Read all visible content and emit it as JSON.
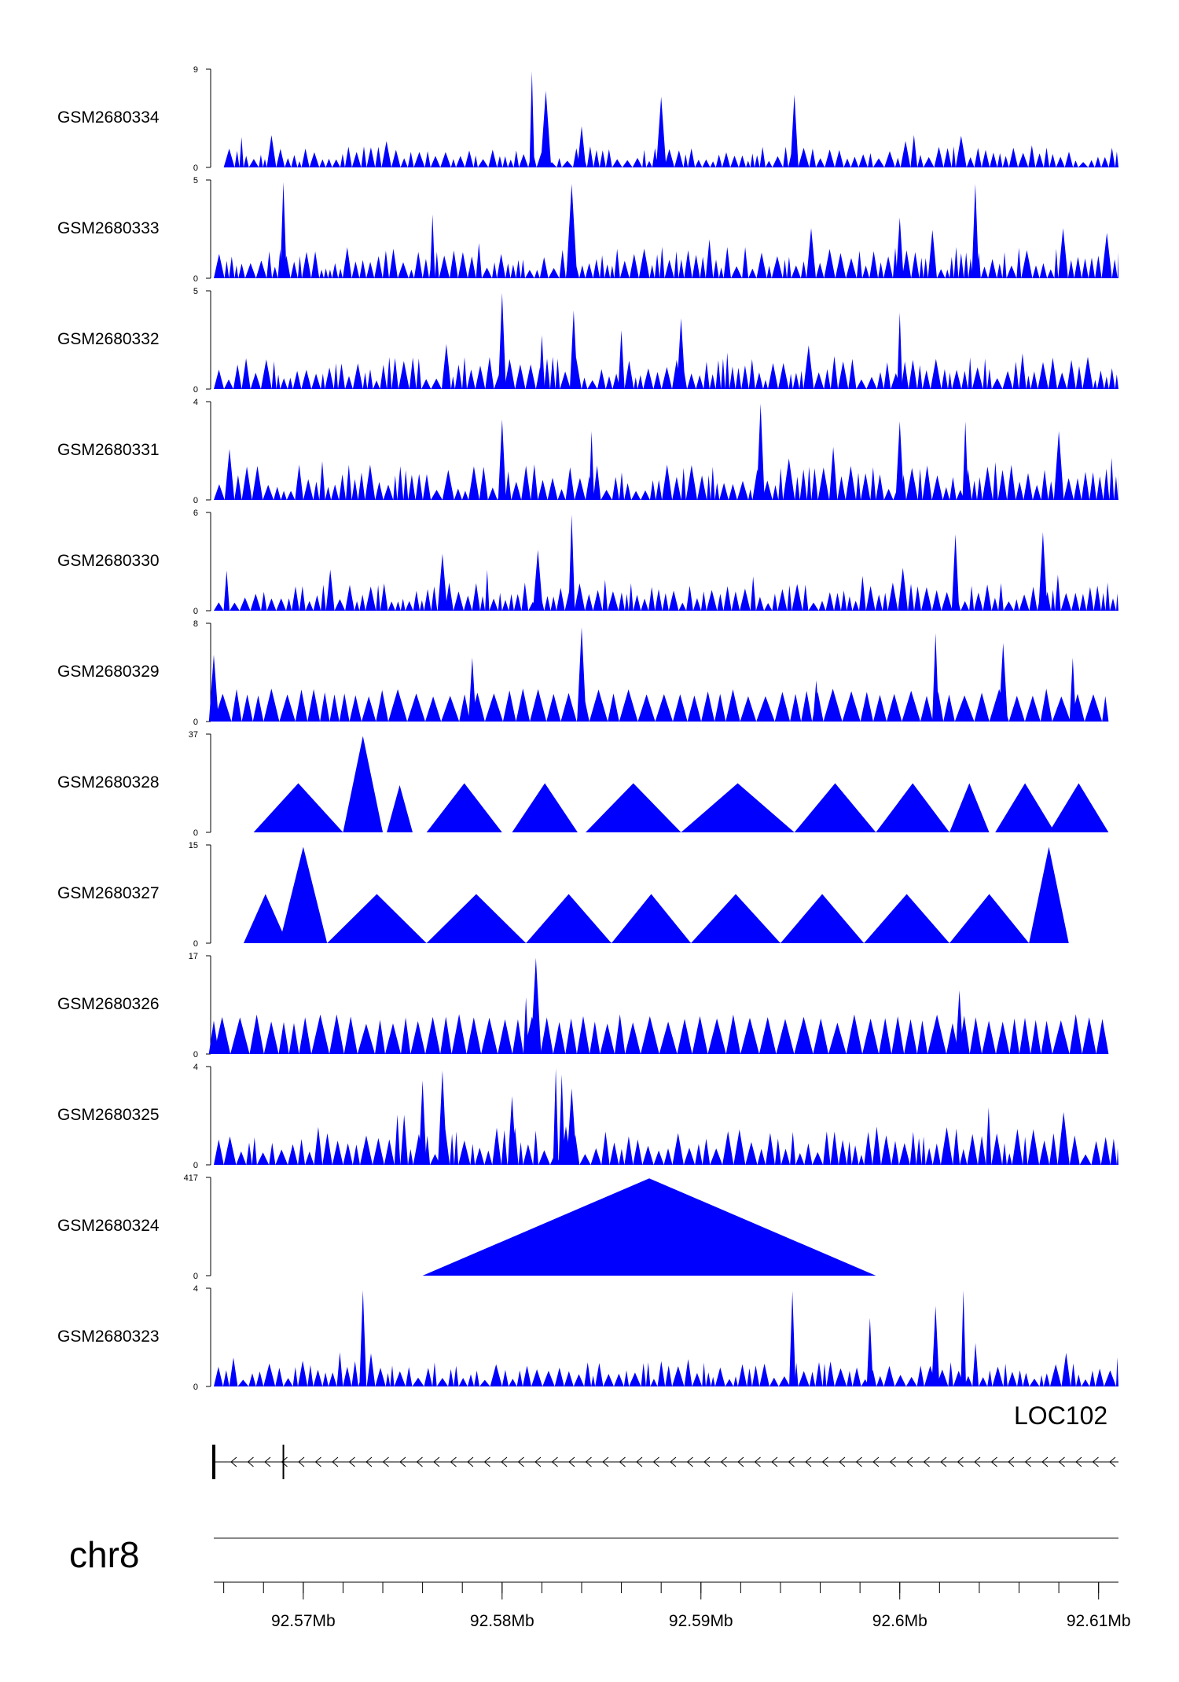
{
  "colors": {
    "signal": "#0000ff",
    "axis": "#000000",
    "gene": "#000000",
    "ideogram": "#888888"
  },
  "chart_data": {
    "type": "area",
    "title": "",
    "x_range_mb": [
      92.5655,
      92.611
    ],
    "tracks": [
      {
        "label": "GSM2680334",
        "ymax": 9,
        "ymin": 0,
        "seed": 11,
        "start": 92.566,
        "end": 92.611,
        "mode": "dense",
        "density": 2.4,
        "base": 0.18,
        "peaks": [
          [
            92.5815,
            0.98
          ],
          [
            92.5822,
            0.78
          ],
          [
            92.588,
            0.72
          ],
          [
            92.5947,
            0.74
          ],
          [
            92.584,
            0.42
          ]
        ]
      },
      {
        "label": "GSM2680333",
        "ymax": 5,
        "ymin": 0,
        "seed": 22,
        "start": 92.5655,
        "end": 92.611,
        "mode": "dense",
        "density": 2.4,
        "base": 0.28,
        "peaks": [
          [
            92.569,
            0.98
          ],
          [
            92.5835,
            0.96
          ],
          [
            92.6038,
            0.96
          ],
          [
            92.5765,
            0.65
          ],
          [
            92.6,
            0.62
          ]
        ]
      },
      {
        "label": "GSM2680332",
        "ymax": 5,
        "ymin": 0,
        "seed": 33,
        "start": 92.5655,
        "end": 92.611,
        "mode": "dense",
        "density": 2.3,
        "base": 0.28,
        "peaks": [
          [
            92.58,
            0.98
          ],
          [
            92.5836,
            0.8
          ],
          [
            92.582,
            0.55
          ],
          [
            92.6,
            0.78
          ],
          [
            92.589,
            0.72
          ],
          [
            92.586,
            0.6
          ]
        ]
      },
      {
        "label": "GSM2680331",
        "ymax": 4,
        "ymin": 0,
        "seed": 44,
        "start": 92.5655,
        "end": 92.611,
        "mode": "dense",
        "density": 2.6,
        "base": 0.3,
        "peaks": [
          [
            92.593,
            0.98
          ],
          [
            92.58,
            0.82
          ],
          [
            92.6,
            0.8
          ],
          [
            92.6033,
            0.8
          ],
          [
            92.5845,
            0.7
          ],
          [
            92.608,
            0.7
          ]
        ]
      },
      {
        "label": "GSM2680330",
        "ymax": 6,
        "ymin": 0,
        "seed": 55,
        "start": 92.5655,
        "end": 92.611,
        "mode": "dense",
        "density": 2.3,
        "base": 0.24,
        "peaks": [
          [
            92.5835,
            0.98
          ],
          [
            92.6028,
            0.78
          ],
          [
            92.6072,
            0.8
          ],
          [
            92.5818,
            0.62
          ],
          [
            92.577,
            0.58
          ]
        ]
      },
      {
        "label": "GSM2680329",
        "ymax": 8,
        "ymin": 0,
        "seed": 66,
        "start": 92.5655,
        "end": 92.6105,
        "mode": "sparse",
        "density": 1.3,
        "base": 0.28,
        "peaks": [
          [
            92.5655,
            0.68
          ],
          [
            92.5785,
            0.65
          ],
          [
            92.584,
            0.96
          ],
          [
            92.6018,
            0.9
          ],
          [
            92.6052,
            0.8
          ],
          [
            92.5958,
            0.42
          ],
          [
            92.6087,
            0.65
          ]
        ]
      },
      {
        "label": "GSM2680328",
        "ymax": 37,
        "ymin": 0,
        "seed": 77,
        "start": 92.5675,
        "end": 92.6105,
        "mode": "tri",
        "tris": [
          [
            92.5675,
            92.572,
            0.5
          ],
          [
            92.572,
            92.574,
            0.98
          ],
          [
            92.5742,
            92.5755,
            0.48
          ],
          [
            92.5762,
            92.58,
            0.5
          ],
          [
            92.5805,
            92.5838,
            0.5
          ],
          [
            92.5842,
            92.589,
            0.5
          ],
          [
            92.589,
            92.5947,
            0.5
          ],
          [
            92.5947,
            92.5988,
            0.5
          ],
          [
            92.5988,
            92.6025,
            0.5
          ],
          [
            92.6025,
            92.6045,
            0.5
          ],
          [
            92.6048,
            92.6078,
            0.5
          ],
          [
            92.6075,
            92.6105,
            0.5
          ]
        ]
      },
      {
        "label": "GSM2680327",
        "ymax": 15,
        "ymin": 0,
        "seed": 88,
        "start": 92.567,
        "end": 92.611,
        "mode": "tri",
        "tris": [
          [
            92.567,
            92.5692,
            0.5
          ],
          [
            92.5688,
            92.5712,
            0.98
          ],
          [
            92.5712,
            92.5762,
            0.5
          ],
          [
            92.5762,
            92.5812,
            0.5
          ],
          [
            92.5812,
            92.5855,
            0.5
          ],
          [
            92.5855,
            92.5895,
            0.5
          ],
          [
            92.5895,
            92.594,
            0.5
          ],
          [
            92.594,
            92.5982,
            0.5
          ],
          [
            92.5982,
            92.6025,
            0.5
          ],
          [
            92.6025,
            92.6065,
            0.5
          ],
          [
            92.6065,
            92.6085,
            0.98
          ]
        ]
      },
      {
        "label": "GSM2680326",
        "ymax": 17,
        "ymin": 0,
        "seed": 99,
        "start": 92.5655,
        "end": 92.6105,
        "mode": "sparse",
        "density": 1.25,
        "base": 0.34,
        "peaks": [
          [
            92.5817,
            0.98
          ],
          [
            92.5812,
            0.58
          ],
          [
            92.603,
            0.65
          ],
          [
            92.5655,
            0.34
          ]
        ]
      },
      {
        "label": "GSM2680325",
        "ymax": 4,
        "ymin": 0,
        "seed": 110,
        "start": 92.5655,
        "end": 92.611,
        "mode": "dense",
        "density": 2.8,
        "base": 0.34,
        "peaks": [
          [
            92.5827,
            0.98
          ],
          [
            92.583,
            0.92
          ],
          [
            92.576,
            0.86
          ],
          [
            92.577,
            0.96
          ],
          [
            92.5835,
            0.78
          ],
          [
            92.5805,
            0.7
          ]
        ]
      },
      {
        "label": "GSM2680324",
        "ymax": 417,
        "ymin": 0,
        "seed": 121,
        "start": 92.576,
        "end": 92.5988,
        "mode": "tri",
        "tris": [
          [
            92.576,
            92.5988,
            0.99
          ]
        ]
      },
      {
        "label": "GSM2680323",
        "ymax": 4,
        "ymin": 0,
        "seed": 132,
        "start": 92.5655,
        "end": 92.611,
        "mode": "dense",
        "density": 2.7,
        "base": 0.22,
        "peaks": [
          [
            92.573,
            0.98
          ],
          [
            92.5946,
            0.97
          ],
          [
            92.6032,
            0.98
          ],
          [
            92.6018,
            0.82
          ],
          [
            92.5985,
            0.7
          ]
        ]
      }
    ],
    "gene": {
      "label": "LOC102",
      "strand": "-",
      "start": 92.5655,
      "end": 92.611,
      "exons": [
        92.5655,
        92.569
      ]
    },
    "chromosome": "chr8",
    "axis": {
      "major_ticks": [
        92.57,
        92.58,
        92.59,
        92.6,
        92.61
      ],
      "major_labels": [
        "92.57Mb",
        "92.58Mb",
        "92.59Mb",
        "92.6Mb",
        "92.61Mb"
      ],
      "minor_step": 0.002
    }
  }
}
